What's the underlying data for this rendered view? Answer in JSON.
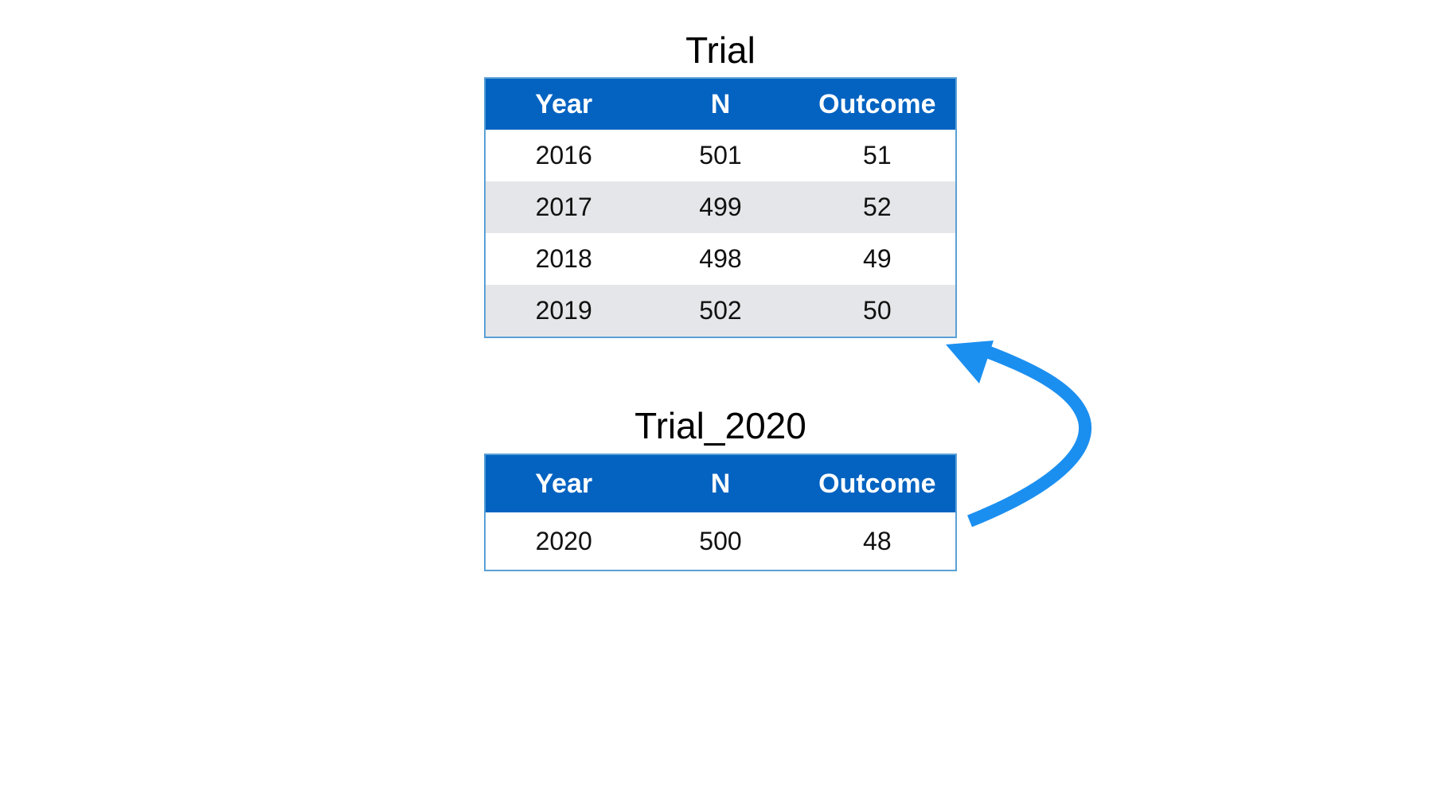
{
  "tables": [
    {
      "title": "Trial",
      "headers": [
        "Year",
        "N",
        "Outcome"
      ],
      "rows": [
        [
          "2016",
          "501",
          "51"
        ],
        [
          "2017",
          "499",
          "52"
        ],
        [
          "2018",
          "498",
          "49"
        ],
        [
          "2019",
          "502",
          "50"
        ]
      ]
    },
    {
      "title": "Trial_2020",
      "headers": [
        "Year",
        "N",
        "Outcome"
      ],
      "rows": [
        [
          "2020",
          "500",
          "48"
        ]
      ]
    }
  ],
  "colors": {
    "header_bg": "#0463c1",
    "header_text": "#ffffff",
    "row_alt_bg": "#e5e6e9",
    "border": "#5aa0d6",
    "arrow": "#1b8ff0"
  },
  "icons": {
    "arrow": "curved-arrow-icon"
  }
}
